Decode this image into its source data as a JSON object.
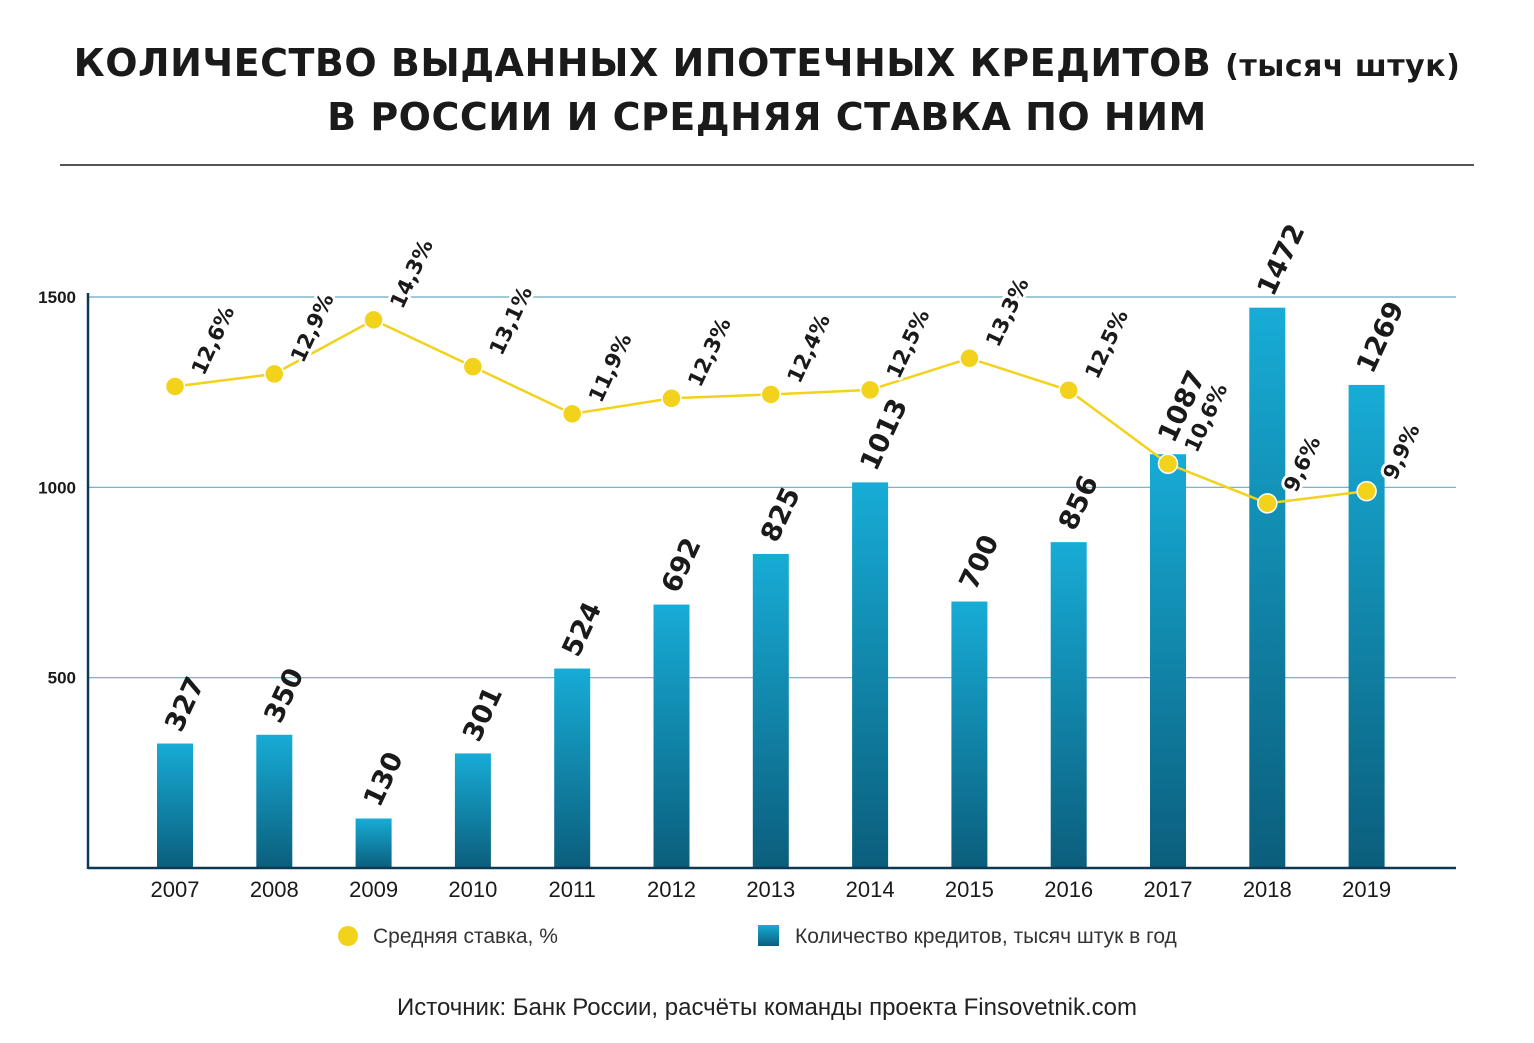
{
  "title": {
    "line1_main": "КОЛИЧЕСТВО ВЫДАННЫХ ИПОТЕЧНЫХ КРЕДИТОВ ",
    "line1_paren": "(тысяч штук)",
    "line2": "В РОССИИ И СРЕДНЯЯ СТАВКА ПО НИМ"
  },
  "source": "Источник: Банк России, расчёты команды проекта Finsovetnik.com",
  "colors": {
    "bar_top": "#17acd6",
    "bar_bottom": "#0b5e7c",
    "line": "#f2d21b",
    "grid": "#6aa9c0",
    "axis": "#0d3a52"
  },
  "chart_data": {
    "type": "bar",
    "categories": [
      "2007",
      "2008",
      "2009",
      "2010",
      "2011",
      "2012",
      "2013",
      "2014",
      "2015",
      "2016",
      "2017",
      "2018",
      "2019"
    ],
    "ylim": [
      0,
      1500
    ],
    "yticks": [
      "500",
      "1000",
      "1500"
    ],
    "grid": true,
    "legend_position": "bottom",
    "series": [
      {
        "name": "Количество кредитов, тысяч штук в год",
        "kind": "bar",
        "values": [
          327,
          350,
          130,
          301,
          524,
          692,
          825,
          1013,
          700,
          856,
          1087,
          1472,
          1269
        ],
        "labels": [
          "327",
          "350",
          "130",
          "301",
          "524",
          "692",
          "825",
          "1013",
          "700",
          "856",
          "1087",
          "1472",
          "1269"
        ]
      },
      {
        "name": "Средняя ставка, %",
        "kind": "line",
        "values": [
          12.6,
          12.9,
          14.3,
          13.1,
          11.9,
          12.3,
          12.4,
          12.5,
          13.3,
          12.5,
          10.6,
          9.6,
          9.9
        ],
        "labels": [
          "12,6%",
          "12,9%",
          "14,3%",
          "13,1%",
          "11,9%",
          "12,3%",
          "12,4%",
          "12,5%",
          "13,3%",
          "12,5%",
          "10,6%",
          "9,6%",
          "9,9%"
        ],
        "y_on_left_axis": [
          1265,
          1298,
          1440,
          1317,
          1193,
          1234,
          1244,
          1256,
          1339,
          1255,
          1062,
          958,
          990
        ]
      }
    ]
  }
}
